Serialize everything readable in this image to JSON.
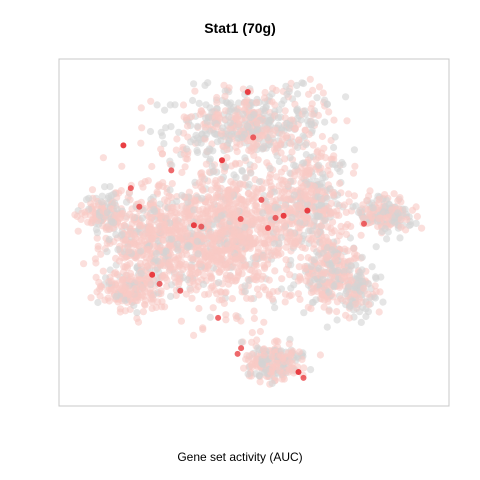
{
  "chart_data": {
    "type": "scatter",
    "title": "Stat1 (70g)",
    "xlabel": "Gene set activity (AUC)",
    "ylabel": "",
    "grid": false,
    "point_colors": {
      "low_gray": "#d3d3d3",
      "mid_pink": "#f9c9c4",
      "high_red": "#e8353a"
    },
    "xlim": [
      0,
      1
    ],
    "ylim": [
      0,
      1
    ],
    "highlighted_points": {
      "name": "",
      "x": [
        0.165,
        0.184,
        0.206,
        0.346,
        0.365,
        0.466,
        0.484,
        0.536,
        0.555,
        0.576,
        0.467,
        0.458,
        0.614,
        0.627,
        0.782,
        0.637,
        0.408,
        0.258,
        0.239,
        0.519,
        0.288,
        0.418,
        0.498,
        0.311
      ],
      "y": [
        0.751,
        0.628,
        0.574,
        0.521,
        0.517,
        0.539,
        0.905,
        0.513,
        0.542,
        0.548,
        0.167,
        0.15,
        0.098,
        0.081,
        0.525,
        0.563,
        0.254,
        0.352,
        0.378,
        0.594,
        0.679,
        0.708,
        0.774,
        0.332
      ]
    }
  }
}
